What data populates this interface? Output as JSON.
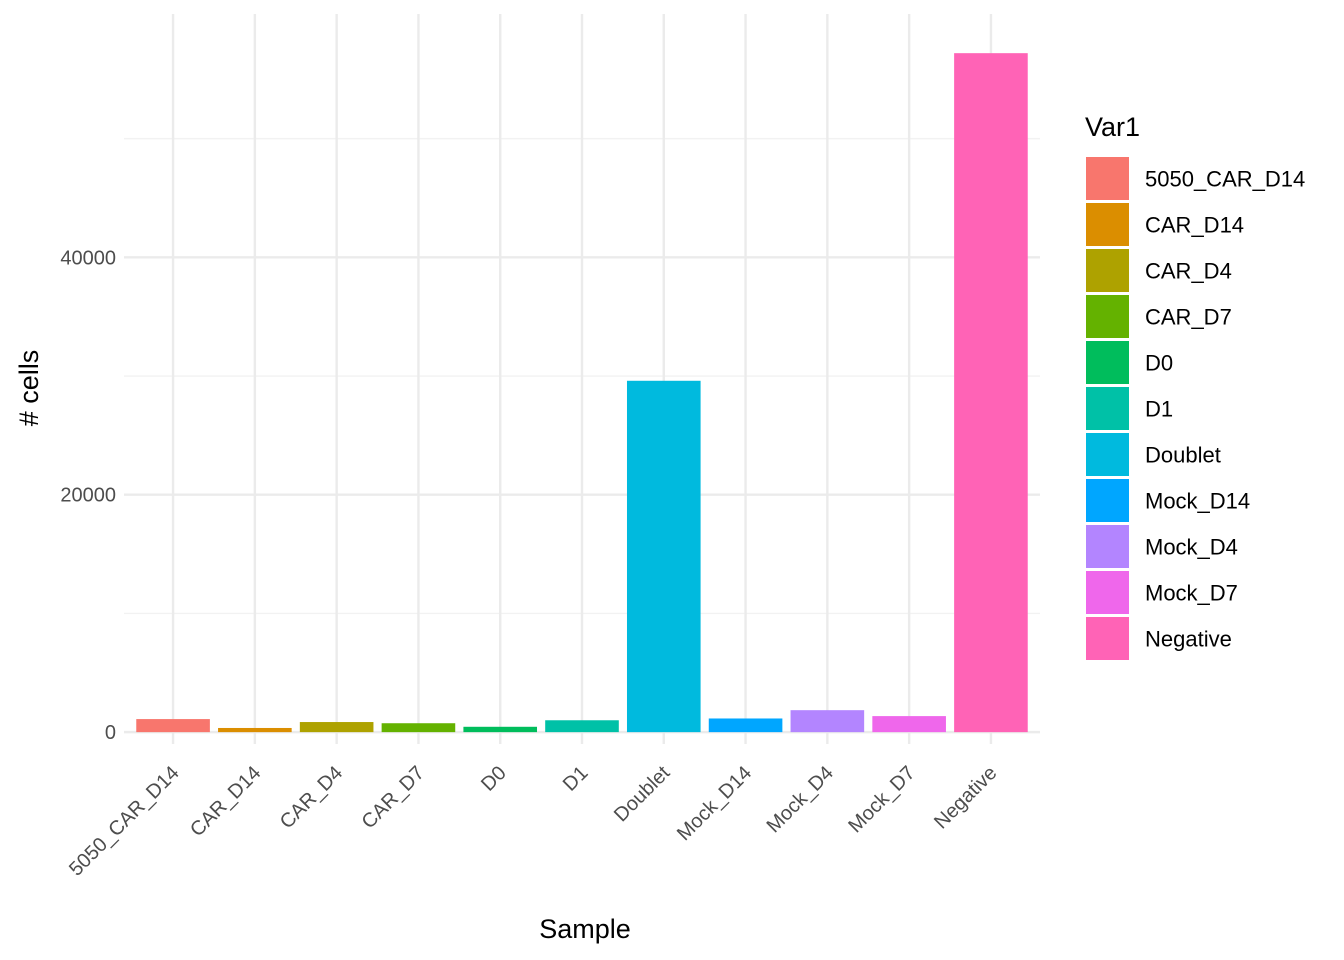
{
  "chart_data": {
    "type": "bar",
    "xlabel": "Sample",
    "ylabel": "# cells",
    "categories": [
      "5050_CAR_D14",
      "CAR_D14",
      "CAR_D4",
      "CAR_D7",
      "D0",
      "D1",
      "Doublet",
      "Mock_D14",
      "Mock_D4",
      "Mock_D7",
      "Negative"
    ],
    "values": [
      1100,
      350,
      850,
      750,
      450,
      1000,
      29600,
      1150,
      1850,
      1350,
      57200
    ],
    "ylim": [
      -1000,
      60500
    ],
    "y_ticks": [
      0,
      20000,
      40000
    ],
    "y_tick_labels": [
      "0",
      "20000",
      "40000"
    ],
    "grid": true,
    "legend": {
      "title": "Var1",
      "position": "right",
      "entries": [
        "5050_CAR_D14",
        "CAR_D14",
        "CAR_D4",
        "CAR_D7",
        "D0",
        "D1",
        "Doublet",
        "Mock_D14",
        "Mock_D4",
        "Mock_D7",
        "Negative"
      ]
    },
    "colors": [
      "#F8766D",
      "#DB8E00",
      "#AEA200",
      "#64B200",
      "#00BD5C",
      "#00C1A7",
      "#00BADE",
      "#00A6FF",
      "#B385FF",
      "#EF67EB",
      "#FF63B6"
    ]
  }
}
